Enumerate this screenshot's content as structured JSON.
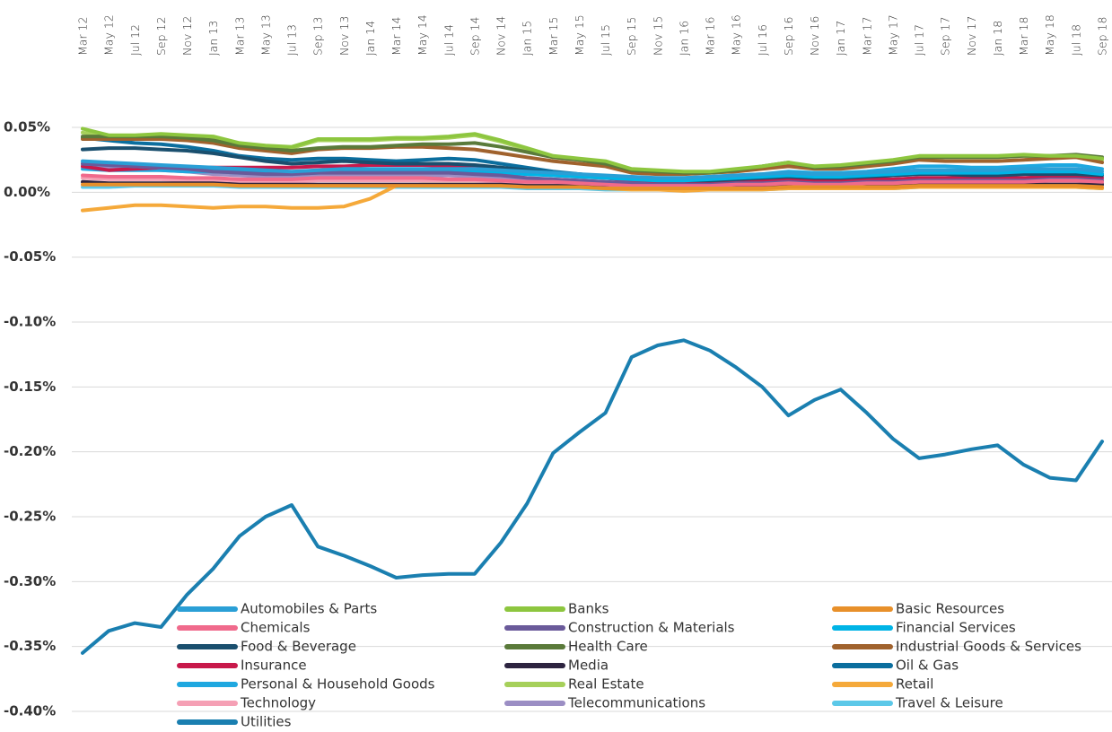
{
  "chart_data": {
    "type": "line",
    "categories": [
      "Mar 12",
      "May 12",
      "Jul 12",
      "Sep 12",
      "Nov 12",
      "Jan 13",
      "Mar 13",
      "May 13",
      "Jul 13",
      "Sep 13",
      "Nov 13",
      "Jan 14",
      "Mar 14",
      "May 14",
      "Jul 14",
      "Sep 14",
      "Nov 14",
      "Jan 15",
      "Mar 15",
      "May 15",
      "Jul 15",
      "Sep 15",
      "Nov 15",
      "Jan 16",
      "Mar 16",
      "May 16",
      "Jul 16",
      "Sep 16",
      "Nov 16",
      "Jan 17",
      "Mar 17",
      "May 17",
      "Jul 17",
      "Sep 17",
      "Nov 17",
      "Jan 18",
      "Mar 18",
      "May 18",
      "Jul 18",
      "Sep 18"
    ],
    "ylim": [
      -0.4,
      0.05
    ],
    "yticks": [
      {
        "value": 0.05,
        "label": "0.05%"
      },
      {
        "value": 0,
        "label": "0.00%"
      },
      {
        "value": -0.05,
        "label": "-0.05%"
      },
      {
        "value": -0.1,
        "label": "-0.10%"
      },
      {
        "value": -0.15,
        "label": "-0.15%"
      },
      {
        "value": -0.2,
        "label": "-0.20%"
      },
      {
        "value": -0.25,
        "label": "-0.25%"
      },
      {
        "value": -0.3,
        "label": "-0.30%"
      },
      {
        "value": -0.35,
        "label": "-0.35%"
      },
      {
        "value": -0.4,
        "label": "-0.40%"
      }
    ],
    "grid": true,
    "series": [
      {
        "name": "Automobiles & Parts",
        "color": "#2a9fd6",
        "values": [
          0.024,
          0.023,
          0.022,
          0.021,
          0.02,
          0.019,
          0.018,
          0.017,
          0.016,
          0.017,
          0.018,
          0.018,
          0.018,
          0.018,
          0.018,
          0.018,
          0.017,
          0.016,
          0.015,
          0.014,
          0.013,
          0.012,
          0.011,
          0.011,
          0.012,
          0.013,
          0.014,
          0.015,
          0.014,
          0.014,
          0.015,
          0.016,
          0.017,
          0.017,
          0.017,
          0.017,
          0.018,
          0.018,
          0.018,
          0.016
        ]
      },
      {
        "name": "Banks",
        "color": "#8dc63f",
        "values": [
          0.049,
          0.044,
          0.044,
          0.045,
          0.044,
          0.043,
          0.038,
          0.036,
          0.035,
          0.041,
          0.041,
          0.041,
          0.042,
          0.042,
          0.043,
          0.045,
          0.04,
          0.034,
          0.028,
          0.026,
          0.024,
          0.018,
          0.017,
          0.016,
          0.016,
          0.018,
          0.02,
          0.023,
          0.02,
          0.021,
          0.023,
          0.025,
          0.028,
          0.028,
          0.028,
          0.028,
          0.029,
          0.028,
          0.028,
          0.026
        ]
      },
      {
        "name": "Basic Resources",
        "color": "#e8902a",
        "values": [
          0.006,
          0.006,
          0.006,
          0.006,
          0.006,
          0.006,
          0.005,
          0.005,
          0.005,
          0.005,
          0.005,
          0.005,
          0.005,
          0.005,
          0.005,
          0.005,
          0.005,
          0.004,
          0.004,
          0.004,
          0.003,
          0.003,
          0.003,
          0.003,
          0.003,
          0.003,
          0.003,
          0.004,
          0.004,
          0.004,
          0.004,
          0.004,
          0.005,
          0.005,
          0.005,
          0.005,
          0.005,
          0.005,
          0.005,
          0.004
        ]
      },
      {
        "name": "Chemicals",
        "color": "#f06a8c",
        "values": [
          0.013,
          0.012,
          0.012,
          0.012,
          0.011,
          0.011,
          0.01,
          0.01,
          0.01,
          0.011,
          0.011,
          0.011,
          0.011,
          0.011,
          0.01,
          0.01,
          0.009,
          0.008,
          0.008,
          0.007,
          0.006,
          0.005,
          0.005,
          0.005,
          0.005,
          0.006,
          0.006,
          0.007,
          0.006,
          0.006,
          0.007,
          0.007,
          0.008,
          0.008,
          0.008,
          0.008,
          0.008,
          0.009,
          0.009,
          0.008
        ]
      },
      {
        "name": "Construction & Materials",
        "color": "#6a5a9a",
        "values": [
          0.022,
          0.021,
          0.02,
          0.019,
          0.018,
          0.016,
          0.015,
          0.014,
          0.014,
          0.015,
          0.015,
          0.015,
          0.015,
          0.015,
          0.015,
          0.014,
          0.013,
          0.011,
          0.01,
          0.009,
          0.008,
          0.007,
          0.006,
          0.006,
          0.006,
          0.007,
          0.007,
          0.008,
          0.007,
          0.007,
          0.008,
          0.008,
          0.009,
          0.009,
          0.009,
          0.009,
          0.009,
          0.01,
          0.01,
          0.009
        ]
      },
      {
        "name": "Financial Services",
        "color": "#00b4e6",
        "values": [
          0.022,
          0.021,
          0.02,
          0.019,
          0.018,
          0.017,
          0.016,
          0.015,
          0.014,
          0.015,
          0.016,
          0.016,
          0.016,
          0.016,
          0.016,
          0.016,
          0.015,
          0.014,
          0.013,
          0.012,
          0.011,
          0.01,
          0.009,
          0.009,
          0.01,
          0.011,
          0.012,
          0.013,
          0.012,
          0.012,
          0.013,
          0.014,
          0.015,
          0.015,
          0.015,
          0.015,
          0.016,
          0.016,
          0.016,
          0.014
        ]
      },
      {
        "name": "Food & Beverage",
        "color": "#1a4f6e",
        "values": [
          0.033,
          0.034,
          0.034,
          0.033,
          0.032,
          0.03,
          0.027,
          0.024,
          0.022,
          0.023,
          0.024,
          0.023,
          0.022,
          0.022,
          0.022,
          0.021,
          0.019,
          0.017,
          0.015,
          0.014,
          0.012,
          0.01,
          0.009,
          0.009,
          0.009,
          0.01,
          0.011,
          0.012,
          0.011,
          0.011,
          0.012,
          0.013,
          0.014,
          0.014,
          0.013,
          0.013,
          0.014,
          0.014,
          0.014,
          0.013
        ]
      },
      {
        "name": "Health Care",
        "color": "#5a7a3a",
        "values": [
          0.043,
          0.043,
          0.043,
          0.043,
          0.042,
          0.04,
          0.036,
          0.034,
          0.032,
          0.034,
          0.035,
          0.035,
          0.036,
          0.037,
          0.037,
          0.038,
          0.035,
          0.031,
          0.027,
          0.025,
          0.022,
          0.017,
          0.016,
          0.015,
          0.015,
          0.017,
          0.02,
          0.023,
          0.019,
          0.02,
          0.022,
          0.024,
          0.027,
          0.027,
          0.027,
          0.027,
          0.028,
          0.028,
          0.029,
          0.027
        ]
      },
      {
        "name": "Industrial Goods & Services",
        "color": "#a0622d",
        "values": [
          0.041,
          0.041,
          0.041,
          0.041,
          0.04,
          0.038,
          0.034,
          0.032,
          0.03,
          0.033,
          0.034,
          0.034,
          0.035,
          0.035,
          0.034,
          0.033,
          0.03,
          0.027,
          0.024,
          0.022,
          0.02,
          0.015,
          0.014,
          0.014,
          0.015,
          0.016,
          0.018,
          0.02,
          0.018,
          0.018,
          0.02,
          0.022,
          0.025,
          0.024,
          0.024,
          0.024,
          0.025,
          0.026,
          0.027,
          0.023
        ]
      },
      {
        "name": "Insurance",
        "color": "#c8194b",
        "values": [
          0.02,
          0.017,
          0.018,
          0.019,
          0.019,
          0.019,
          0.019,
          0.019,
          0.019,
          0.02,
          0.02,
          0.021,
          0.021,
          0.021,
          0.02,
          0.019,
          0.017,
          0.015,
          0.013,
          0.012,
          0.011,
          0.009,
          0.008,
          0.008,
          0.008,
          0.008,
          0.009,
          0.01,
          0.009,
          0.009,
          0.01,
          0.01,
          0.011,
          0.011,
          0.011,
          0.011,
          0.011,
          0.012,
          0.012,
          0.011
        ]
      },
      {
        "name": "Media",
        "color": "#2d2440",
        "values": [
          0.008,
          0.007,
          0.007,
          0.007,
          0.007,
          0.007,
          0.006,
          0.006,
          0.006,
          0.006,
          0.006,
          0.006,
          0.006,
          0.006,
          0.006,
          0.006,
          0.006,
          0.005,
          0.005,
          0.005,
          0.004,
          0.004,
          0.004,
          0.004,
          0.004,
          0.004,
          0.004,
          0.005,
          0.005,
          0.005,
          0.005,
          0.005,
          0.006,
          0.006,
          0.006,
          0.006,
          0.006,
          0.006,
          0.006,
          0.006
        ]
      },
      {
        "name": "Oil & Gas",
        "color": "#0b6e9e",
        "values": [
          0.042,
          0.04,
          0.038,
          0.037,
          0.035,
          0.032,
          0.028,
          0.026,
          0.025,
          0.026,
          0.026,
          0.025,
          0.024,
          0.025,
          0.026,
          0.025,
          0.022,
          0.019,
          0.016,
          0.014,
          0.012,
          0.01,
          0.009,
          0.009,
          0.01,
          0.01,
          0.011,
          0.012,
          0.011,
          0.011,
          0.012,
          0.013,
          0.014,
          0.014,
          0.014,
          0.014,
          0.014,
          0.015,
          0.015,
          0.014
        ]
      },
      {
        "name": "Personal & Household Goods",
        "color": "#1fa8e0",
        "values": [
          0.018,
          0.017,
          0.017,
          0.017,
          0.016,
          0.016,
          0.015,
          0.015,
          0.015,
          0.016,
          0.016,
          0.016,
          0.017,
          0.017,
          0.017,
          0.017,
          0.016,
          0.015,
          0.014,
          0.013,
          0.012,
          0.011,
          0.011,
          0.011,
          0.012,
          0.013,
          0.014,
          0.016,
          0.015,
          0.015,
          0.016,
          0.018,
          0.02,
          0.02,
          0.019,
          0.019,
          0.02,
          0.021,
          0.021,
          0.018
        ]
      },
      {
        "name": "Real Estate",
        "color": "#a6d05a",
        "values": [
          0.046,
          0.043,
          0.043,
          0.044,
          0.043,
          0.042,
          0.037,
          0.035,
          0.034,
          0.04,
          0.04,
          0.04,
          0.041,
          0.041,
          0.042,
          0.044,
          0.039,
          0.033,
          0.027,
          0.025,
          0.023,
          0.017,
          0.016,
          0.015,
          0.015,
          0.017,
          0.019,
          0.022,
          0.019,
          0.02,
          0.022,
          0.024,
          0.027,
          0.027,
          0.027,
          0.027,
          0.028,
          0.027,
          0.027,
          0.025
        ]
      },
      {
        "name": "Retail",
        "color": "#f5a93a",
        "values": [
          -0.014,
          -0.012,
          -0.01,
          -0.01,
          -0.011,
          -0.012,
          -0.011,
          -0.011,
          -0.012,
          -0.012,
          -0.011,
          -0.005,
          0.005,
          0.006,
          0.006,
          0.006,
          0.005,
          0.005,
          0.004,
          0.004,
          0.003,
          0.002,
          0.002,
          0.001,
          0.002,
          0.002,
          0.002,
          0.003,
          0.003,
          0.003,
          0.003,
          0.003,
          0.004,
          0.004,
          0.004,
          0.004,
          0.004,
          0.004,
          0.004,
          0.003
        ]
      },
      {
        "name": "Technology",
        "color": "#f5a0b5",
        "values": [
          0.011,
          0.01,
          0.01,
          0.01,
          0.009,
          0.009,
          0.008,
          0.008,
          0.008,
          0.009,
          0.009,
          0.009,
          0.009,
          0.009,
          0.009,
          0.009,
          0.008,
          0.007,
          0.007,
          0.006,
          0.005,
          0.004,
          0.004,
          0.004,
          0.004,
          0.005,
          0.005,
          0.006,
          0.005,
          0.005,
          0.006,
          0.006,
          0.007,
          0.007,
          0.007,
          0.007,
          0.007,
          0.008,
          0.008,
          0.007
        ]
      },
      {
        "name": "Telecommunications",
        "color": "#9b8ec4",
        "values": [
          0.02,
          0.019,
          0.018,
          0.017,
          0.016,
          0.014,
          0.013,
          0.012,
          0.012,
          0.013,
          0.013,
          0.013,
          0.013,
          0.013,
          0.013,
          0.012,
          0.011,
          0.009,
          0.008,
          0.007,
          0.006,
          0.005,
          0.004,
          0.004,
          0.004,
          0.005,
          0.005,
          0.006,
          0.005,
          0.005,
          0.006,
          0.006,
          0.007,
          0.007,
          0.007,
          0.007,
          0.007,
          0.008,
          0.008,
          0.007
        ]
      },
      {
        "name": "Travel & Leisure",
        "color": "#5cc8e8",
        "values": [
          0.004,
          0.004,
          0.005,
          0.005,
          0.005,
          0.005,
          0.004,
          0.004,
          0.004,
          0.004,
          0.004,
          0.004,
          0.004,
          0.004,
          0.004,
          0.004,
          0.004,
          0.003,
          0.003,
          0.003,
          0.002,
          0.002,
          0.002,
          0.002,
          0.002,
          0.002,
          0.002,
          0.003,
          0.003,
          0.003,
          0.003,
          0.003,
          0.004,
          0.004,
          0.004,
          0.004,
          0.004,
          0.004,
          0.004,
          0.003
        ]
      },
      {
        "name": "Utilities",
        "color": "#1a7fb0",
        "values": [
          -0.355,
          -0.338,
          -0.332,
          -0.335,
          -0.31,
          -0.29,
          -0.265,
          -0.25,
          -0.241,
          -0.273,
          -0.28,
          -0.288,
          -0.297,
          -0.295,
          -0.294,
          -0.294,
          -0.27,
          -0.24,
          -0.201,
          -0.185,
          -0.17,
          -0.127,
          -0.118,
          -0.114,
          -0.122,
          -0.135,
          -0.15,
          -0.172,
          -0.16,
          -0.152,
          -0.17,
          -0.19,
          -0.205,
          -0.202,
          -0.198,
          -0.195,
          -0.21,
          -0.22,
          -0.222,
          -0.192
        ]
      }
    ]
  }
}
